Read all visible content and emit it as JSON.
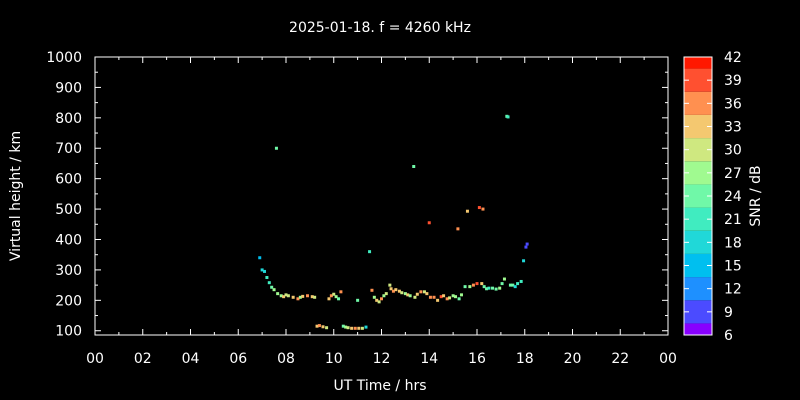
{
  "chart_data": {
    "type": "scatter",
    "title": "2025-01-18. f = 4260 kHz",
    "xlabel": "UT Time / hrs",
    "ylabel": "Virtual height / km",
    "colorbar_label": "SNR / dB",
    "xlim": [
      0,
      24
    ],
    "ylim": [
      80,
      1000
    ],
    "x_ticks": [
      "00",
      "02",
      "04",
      "06",
      "08",
      "10",
      "12",
      "14",
      "16",
      "18",
      "20",
      "22",
      "00"
    ],
    "y_ticks": [
      100,
      200,
      300,
      400,
      500,
      600,
      700,
      800,
      900,
      1000
    ],
    "colorbar_ticks": [
      6,
      9,
      12,
      15,
      18,
      21,
      24,
      27,
      30,
      33,
      36,
      39,
      42
    ],
    "colorbar_colors": [
      "#8800ff",
      "#4b4bff",
      "#1e90ff",
      "#00bfef",
      "#20d8d8",
      "#40ecc0",
      "#70f8a8",
      "#a0fa90",
      "#cfe880",
      "#f4c870",
      "#ff9050",
      "#ff5030",
      "#ff1800"
    ],
    "grid": false,
    "legend": "colorbar-right",
    "points": [
      {
        "x": 6.9,
        "y": 340,
        "snr": 15
      },
      {
        "x": 7.0,
        "y": 300,
        "snr": 18
      },
      {
        "x": 7.1,
        "y": 295,
        "snr": 18
      },
      {
        "x": 7.2,
        "y": 275,
        "snr": 20
      },
      {
        "x": 7.3,
        "y": 258,
        "snr": 21
      },
      {
        "x": 7.4,
        "y": 243,
        "snr": 24
      },
      {
        "x": 7.5,
        "y": 235,
        "snr": 27
      },
      {
        "x": 7.6,
        "y": 700,
        "snr": 24
      },
      {
        "x": 7.65,
        "y": 222,
        "snr": 27
      },
      {
        "x": 7.8,
        "y": 215,
        "snr": 28
      },
      {
        "x": 7.9,
        "y": 212,
        "snr": 33
      },
      {
        "x": 8.0,
        "y": 218,
        "snr": 30
      },
      {
        "x": 8.1,
        "y": 215,
        "snr": 30
      },
      {
        "x": 8.3,
        "y": 210,
        "snr": 33
      },
      {
        "x": 8.5,
        "y": 205,
        "snr": 36
      },
      {
        "x": 8.6,
        "y": 210,
        "snr": 28
      },
      {
        "x": 8.7,
        "y": 213,
        "snr": 33
      },
      {
        "x": 8.9,
        "y": 215,
        "snr": 36
      },
      {
        "x": 9.1,
        "y": 212,
        "snr": 33
      },
      {
        "x": 9.2,
        "y": 210,
        "snr": 30
      },
      {
        "x": 9.3,
        "y": 115,
        "snr": 33
      },
      {
        "x": 9.4,
        "y": 117,
        "snr": 36
      },
      {
        "x": 9.55,
        "y": 113,
        "snr": 33
      },
      {
        "x": 9.7,
        "y": 110,
        "snr": 30
      },
      {
        "x": 9.8,
        "y": 205,
        "snr": 33
      },
      {
        "x": 9.9,
        "y": 215,
        "snr": 36
      },
      {
        "x": 10.0,
        "y": 220,
        "snr": 30
      },
      {
        "x": 10.1,
        "y": 212,
        "snr": 27
      },
      {
        "x": 10.2,
        "y": 205,
        "snr": 24
      },
      {
        "x": 10.3,
        "y": 228,
        "snr": 36
      },
      {
        "x": 10.4,
        "y": 115,
        "snr": 24
      },
      {
        "x": 10.5,
        "y": 112,
        "snr": 27
      },
      {
        "x": 10.6,
        "y": 110,
        "snr": 30
      },
      {
        "x": 10.75,
        "y": 108,
        "snr": 33
      },
      {
        "x": 10.9,
        "y": 108,
        "snr": 36
      },
      {
        "x": 11.05,
        "y": 108,
        "snr": 33
      },
      {
        "x": 11.2,
        "y": 108,
        "snr": 30
      },
      {
        "x": 11.35,
        "y": 112,
        "snr": 18
      },
      {
        "x": 11.0,
        "y": 200,
        "snr": 24
      },
      {
        "x": 11.5,
        "y": 360,
        "snr": 21
      },
      {
        "x": 11.6,
        "y": 233,
        "snr": 36
      },
      {
        "x": 11.7,
        "y": 210,
        "snr": 27
      },
      {
        "x": 11.8,
        "y": 200,
        "snr": 33
      },
      {
        "x": 11.9,
        "y": 195,
        "snr": 30
      },
      {
        "x": 12.0,
        "y": 205,
        "snr": 36
      },
      {
        "x": 12.1,
        "y": 215,
        "snr": 27
      },
      {
        "x": 12.2,
        "y": 222,
        "snr": 30
      },
      {
        "x": 12.35,
        "y": 250,
        "snr": 30
      },
      {
        "x": 12.4,
        "y": 238,
        "snr": 33
      },
      {
        "x": 12.5,
        "y": 230,
        "snr": 36
      },
      {
        "x": 12.6,
        "y": 235,
        "snr": 33
      },
      {
        "x": 12.75,
        "y": 230,
        "snr": 33
      },
      {
        "x": 12.85,
        "y": 225,
        "snr": 30
      },
      {
        "x": 13.0,
        "y": 222,
        "snr": 27
      },
      {
        "x": 13.1,
        "y": 218,
        "snr": 33
      },
      {
        "x": 13.2,
        "y": 215,
        "snr": 27
      },
      {
        "x": 13.35,
        "y": 640,
        "snr": 24
      },
      {
        "x": 13.4,
        "y": 210,
        "snr": 30
      },
      {
        "x": 13.5,
        "y": 220,
        "snr": 33
      },
      {
        "x": 13.65,
        "y": 228,
        "snr": 36
      },
      {
        "x": 13.8,
        "y": 228,
        "snr": 30
      },
      {
        "x": 13.9,
        "y": 222,
        "snr": 33
      },
      {
        "x": 14.0,
        "y": 455,
        "snr": 39
      },
      {
        "x": 14.05,
        "y": 210,
        "snr": 36
      },
      {
        "x": 14.2,
        "y": 210,
        "snr": 36
      },
      {
        "x": 14.35,
        "y": 200,
        "snr": 33
      },
      {
        "x": 14.5,
        "y": 212,
        "snr": 39
      },
      {
        "x": 14.6,
        "y": 215,
        "snr": 33
      },
      {
        "x": 14.75,
        "y": 205,
        "snr": 36
      },
      {
        "x": 14.85,
        "y": 208,
        "snr": 30
      },
      {
        "x": 15.0,
        "y": 215,
        "snr": 27
      },
      {
        "x": 15.1,
        "y": 212,
        "snr": 27
      },
      {
        "x": 15.2,
        "y": 435,
        "snr": 36
      },
      {
        "x": 15.25,
        "y": 205,
        "snr": 24
      },
      {
        "x": 15.35,
        "y": 218,
        "snr": 27
      },
      {
        "x": 15.5,
        "y": 245,
        "snr": 24
      },
      {
        "x": 15.6,
        "y": 493,
        "snr": 33
      },
      {
        "x": 15.7,
        "y": 245,
        "snr": 27
      },
      {
        "x": 15.85,
        "y": 250,
        "snr": 36
      },
      {
        "x": 16.0,
        "y": 255,
        "snr": 39
      },
      {
        "x": 16.1,
        "y": 505,
        "snr": 39
      },
      {
        "x": 16.2,
        "y": 255,
        "snr": 33
      },
      {
        "x": 16.25,
        "y": 500,
        "snr": 36
      },
      {
        "x": 16.3,
        "y": 245,
        "snr": 24
      },
      {
        "x": 16.4,
        "y": 238,
        "snr": 24
      },
      {
        "x": 16.5,
        "y": 240,
        "snr": 21
      },
      {
        "x": 16.65,
        "y": 240,
        "snr": 24
      },
      {
        "x": 16.8,
        "y": 237,
        "snr": 24
      },
      {
        "x": 16.95,
        "y": 240,
        "snr": 27
      },
      {
        "x": 17.05,
        "y": 255,
        "snr": 24
      },
      {
        "x": 17.15,
        "y": 270,
        "snr": 27
      },
      {
        "x": 17.25,
        "y": 805,
        "snr": 24
      },
      {
        "x": 17.3,
        "y": 803,
        "snr": 21
      },
      {
        "x": 17.4,
        "y": 250,
        "snr": 24
      },
      {
        "x": 17.5,
        "y": 250,
        "snr": 24
      },
      {
        "x": 17.6,
        "y": 245,
        "snr": 18
      },
      {
        "x": 17.7,
        "y": 255,
        "snr": 21
      },
      {
        "x": 17.85,
        "y": 262,
        "snr": 21
      },
      {
        "x": 17.95,
        "y": 330,
        "snr": 18
      },
      {
        "x": 18.05,
        "y": 375,
        "snr": 9
      },
      {
        "x": 18.1,
        "y": 385,
        "snr": 9
      }
    ]
  }
}
